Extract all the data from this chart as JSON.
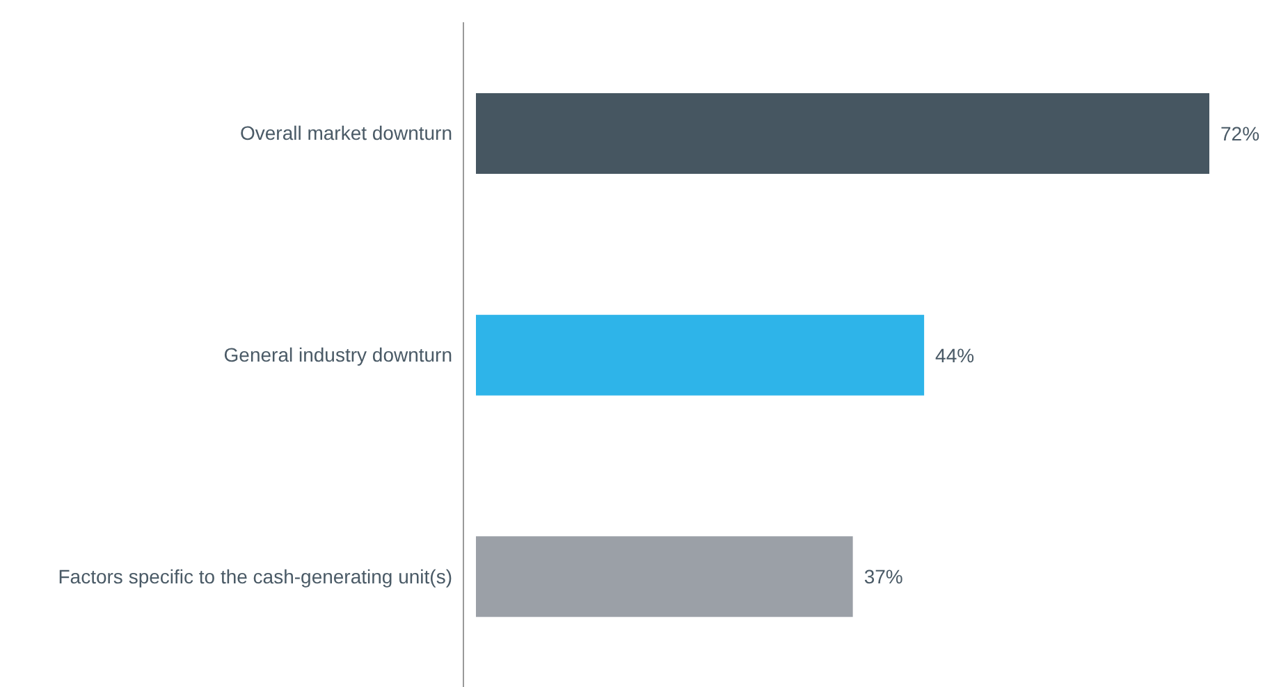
{
  "chart_data": {
    "type": "bar",
    "orientation": "horizontal",
    "categories": [
      "Overall market downturn",
      "General industry downturn",
      "Factors specific to the cash-generating unit(s)"
    ],
    "values": [
      72,
      44,
      37
    ],
    "colors": [
      "#465661",
      "#2eb4e9",
      "#9ba0a7"
    ],
    "value_labels": [
      "72%",
      "44%",
      "37%"
    ],
    "tick_labels": "y",
    "grid": false
  }
}
